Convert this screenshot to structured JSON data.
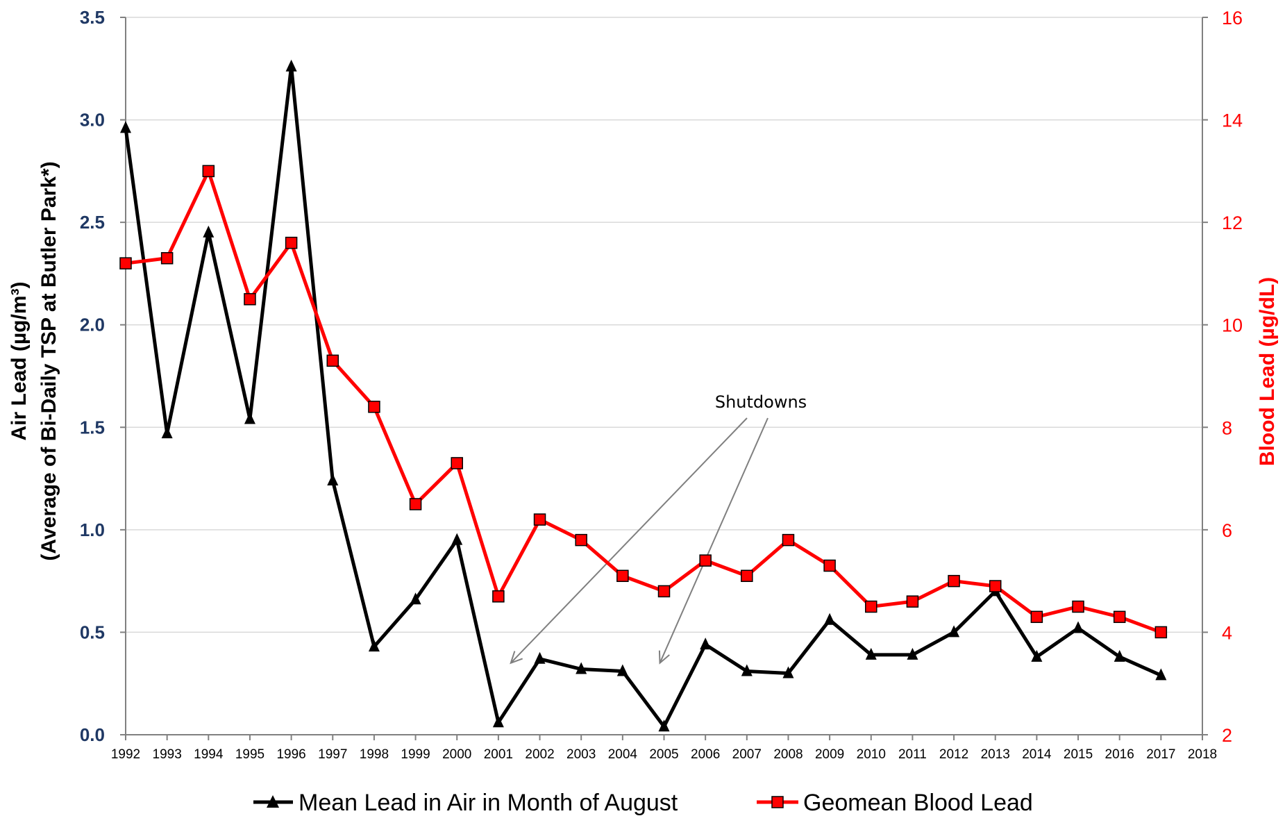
{
  "chart_data": {
    "type": "line",
    "x": [
      1992,
      1993,
      1994,
      1995,
      1996,
      1997,
      1998,
      1999,
      2000,
      2001,
      2002,
      2003,
      2004,
      2005,
      2006,
      2007,
      2008,
      2009,
      2010,
      2011,
      2012,
      2013,
      2014,
      2015,
      2016,
      2017
    ],
    "x_ticks": [
      "1992",
      "1993",
      "1994",
      "1995",
      "1996",
      "1997",
      "1998",
      "1999",
      "2000",
      "2001",
      "2002",
      "2003",
      "2004",
      "2005",
      "2006",
      "2007",
      "2008",
      "2009",
      "2010",
      "2011",
      "2012",
      "2013",
      "2014",
      "2015",
      "2016",
      "2017",
      "2018"
    ],
    "xlim": [
      1992,
      2018
    ],
    "y_left": {
      "label_line1": "Air Lead (µg/m³)",
      "label_line2": "(Average of Bi-Daily TSP at Butler Park*)",
      "ylim": [
        0,
        3.5
      ],
      "ticks": [
        "0.0",
        "0.5",
        "1.0",
        "1.5",
        "2.0",
        "2.5",
        "3.0",
        "3.5"
      ],
      "tick_values": [
        0,
        0.5,
        1.0,
        1.5,
        2.0,
        2.5,
        3.0,
        3.5
      ]
    },
    "y_right": {
      "label": "Blood Lead (µg/dL)",
      "ylim": [
        2,
        16
      ],
      "ticks": [
        "2",
        "4",
        "6",
        "8",
        "10",
        "12",
        "14",
        "16"
      ],
      "tick_values": [
        2,
        4,
        6,
        8,
        10,
        12,
        14,
        16
      ]
    },
    "series": [
      {
        "name": "Mean Lead in Air in Month of August",
        "axis": "left",
        "color": "#000000",
        "marker": "triangle",
        "values": [
          2.96,
          1.47,
          2.45,
          1.54,
          3.26,
          1.24,
          0.43,
          0.66,
          0.95,
          0.06,
          0.37,
          0.32,
          0.31,
          0.04,
          0.44,
          0.31,
          0.3,
          0.56,
          0.39,
          0.39,
          0.5,
          0.7,
          0.38,
          0.52,
          0.38,
          0.29
        ]
      },
      {
        "name": "Geomean Blood Lead",
        "axis": "right",
        "color": "#ff0000",
        "marker": "square",
        "values": [
          11.2,
          11.3,
          13.0,
          10.5,
          11.6,
          9.3,
          8.4,
          6.5,
          7.3,
          4.7,
          6.2,
          5.8,
          5.1,
          4.8,
          5.4,
          5.1,
          5.8,
          5.3,
          4.5,
          4.6,
          5.0,
          4.9,
          4.3,
          4.5,
          4.3,
          4.0
        ]
      }
    ],
    "annotation": {
      "text": "Shutdowns",
      "targets": [
        2001,
        2005
      ]
    },
    "grid": true,
    "legend": "bottom"
  }
}
